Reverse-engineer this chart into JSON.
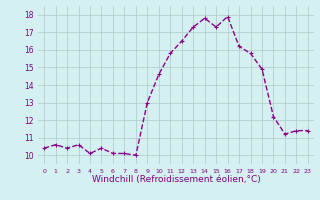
{
  "x": [
    0,
    1,
    2,
    3,
    4,
    5,
    6,
    7,
    8,
    9,
    10,
    11,
    12,
    13,
    14,
    15,
    16,
    17,
    18,
    19,
    20,
    21,
    22,
    23
  ],
  "y": [
    10.4,
    10.6,
    10.4,
    10.6,
    10.1,
    10.4,
    10.1,
    10.1,
    10.0,
    13.0,
    14.6,
    15.8,
    16.5,
    17.3,
    17.8,
    17.3,
    17.9,
    16.2,
    15.8,
    14.9,
    12.2,
    11.2,
    11.4,
    11.4
  ],
  "line_color": "#8B008B",
  "marker": "+",
  "marker_size": 3,
  "xlabel": "Windchill (Refroidissement éolien,°C)",
  "xlabel_fontsize": 6.5,
  "xlim": [
    -0.5,
    23.5
  ],
  "ylim": [
    9.5,
    18.5
  ],
  "yticks": [
    10,
    11,
    12,
    13,
    14,
    15,
    16,
    17,
    18
  ],
  "xticks": [
    0,
    1,
    2,
    3,
    4,
    5,
    6,
    7,
    8,
    9,
    10,
    11,
    12,
    13,
    14,
    15,
    16,
    17,
    18,
    19,
    20,
    21,
    22,
    23
  ],
  "bg_color": "#d4f0f0",
  "grid_color": "#b0c8c8",
  "tick_label_color": "#800080",
  "line_width": 1.0
}
